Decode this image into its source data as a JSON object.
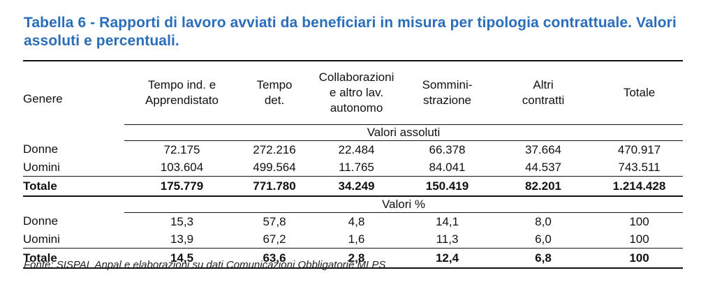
{
  "title": "Tabella 6 - Rapporti di lavoro avviati da beneficiari in misura per tipologia contrattuale. Valori assoluti e percentuali.",
  "headers": {
    "genere": "Genere",
    "col1": [
      "Tempo ind. e",
      "Apprendistato"
    ],
    "col2": [
      "Tempo",
      "det."
    ],
    "col3": [
      "Collaborazioni",
      "e altro lav.",
      "autonomo"
    ],
    "col4": [
      "Sommini-",
      "strazione"
    ],
    "col5": [
      "Altri",
      "contratti"
    ],
    "col6": "Totale"
  },
  "sections": [
    {
      "label": "Valori assoluti",
      "rows": [
        {
          "genere": "Donne",
          "values": [
            "72.175",
            "272.216",
            "22.484",
            "66.378",
            "37.664",
            "470.917"
          ]
        },
        {
          "genere": "Uomini",
          "values": [
            "103.604",
            "499.564",
            "11.765",
            "84.041",
            "44.537",
            "743.511"
          ]
        }
      ],
      "total": {
        "genere": "Totale",
        "values": [
          "175.779",
          "771.780",
          "34.249",
          "150.419",
          "82.201",
          "1.214.428"
        ]
      }
    },
    {
      "label": "Valori %",
      "rows": [
        {
          "genere": "Donne",
          "values": [
            "15,3",
            "57,8",
            "4,8",
            "14,1",
            "8,0",
            "100"
          ]
        },
        {
          "genere": "Uomini",
          "values": [
            "13,9",
            "67,2",
            "1,6",
            "11,3",
            "6,0",
            "100"
          ]
        }
      ],
      "total": {
        "genere": "Totale",
        "values": [
          "14,5",
          "63,6",
          "2,8",
          "12,4",
          "6,8",
          "100"
        ]
      }
    }
  ],
  "source": "Fonte: SISPAL Anpal e elaborazioni su dati Comunicazioni Obbligatorie MLPS"
}
